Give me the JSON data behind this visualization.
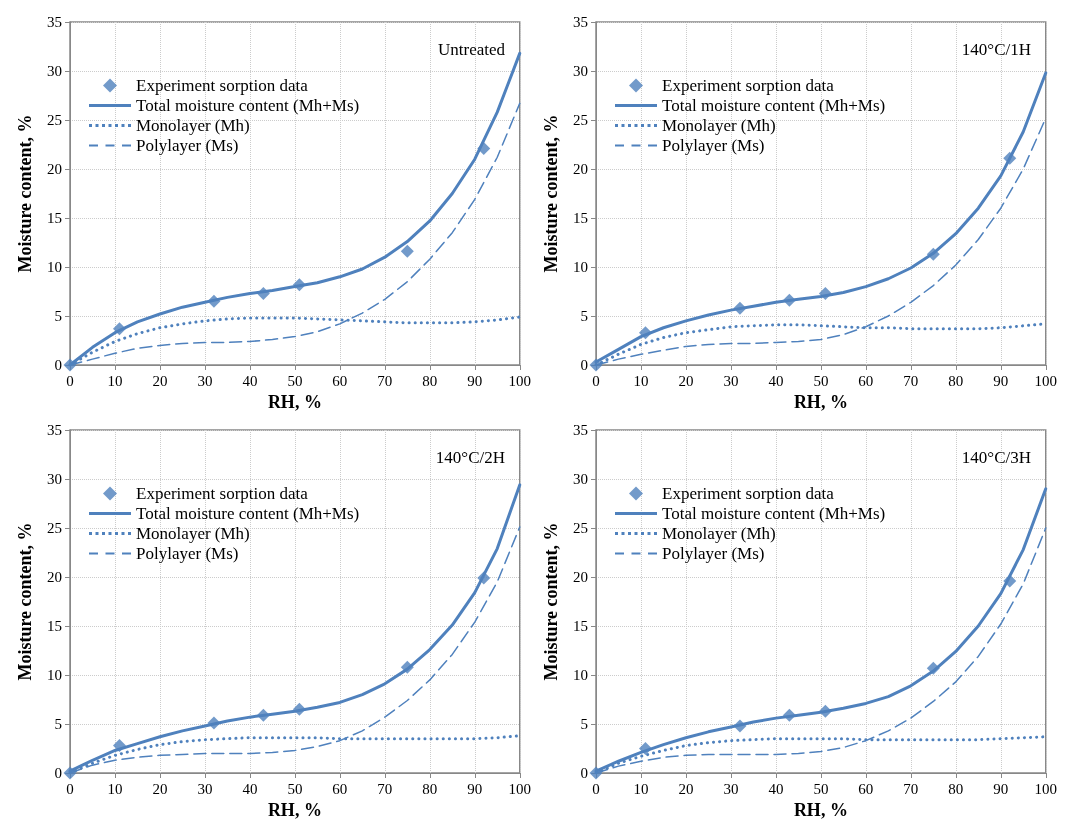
{
  "chart_data": [
    {
      "type": "line",
      "title": "Untreated",
      "xlabel": "RH, %",
      "ylabel": "Moisture content, %",
      "xlim": [
        0,
        100
      ],
      "xticks": [
        0,
        10,
        20,
        30,
        40,
        50,
        60,
        70,
        80,
        90,
        100
      ],
      "ylim": [
        0,
        35
      ],
      "yticks": [
        0,
        5,
        10,
        15,
        20,
        25,
        30,
        35
      ],
      "grid": true,
      "legend": "top left",
      "x": [
        0,
        5,
        10,
        15,
        20,
        25,
        30,
        35,
        40,
        45,
        50,
        55,
        60,
        65,
        70,
        75,
        80,
        85,
        90,
        95,
        100
      ],
      "series": [
        {
          "name": "Experiment sorption data",
          "type": "scatter",
          "marker": "diamond",
          "color": "#4f81bd",
          "x": [
            0,
            11,
            32,
            43,
            51,
            75,
            92
          ],
          "values": [
            0,
            3.7,
            6.5,
            7.3,
            8.2,
            11.6,
            22.1
          ]
        },
        {
          "name": "Total moisture content (Mh+Ms)",
          "type": "line",
          "marker": "none",
          "line_style": "solid",
          "color": "#4f81bd",
          "values": [
            0,
            1.8,
            3.3,
            4.4,
            5.2,
            5.9,
            6.4,
            6.9,
            7.3,
            7.6,
            8.0,
            8.4,
            9.0,
            9.8,
            11.0,
            12.6,
            14.7,
            17.5,
            21.0,
            25.8,
            31.8
          ]
        },
        {
          "name": "Monolayer (Mh)",
          "type": "line",
          "marker": "none",
          "line_style": "dotted",
          "color": "#4f81bd",
          "values": [
            0,
            1.3,
            2.4,
            3.2,
            3.8,
            4.2,
            4.5,
            4.7,
            4.8,
            4.8,
            4.8,
            4.7,
            4.6,
            4.5,
            4.4,
            4.3,
            4.3,
            4.3,
            4.4,
            4.6,
            4.9
          ]
        },
        {
          "name": "Polylayer (Ms)",
          "type": "line",
          "marker": "none",
          "line_style": "dashed",
          "color": "#4f81bd",
          "values": [
            0,
            0.6,
            1.2,
            1.7,
            2.0,
            2.2,
            2.3,
            2.3,
            2.4,
            2.6,
            2.9,
            3.4,
            4.2,
            5.3,
            6.7,
            8.5,
            10.8,
            13.5,
            16.9,
            21.2,
            26.7
          ]
        }
      ]
    },
    {
      "type": "line",
      "title": "140°C/1H",
      "xlabel": "RH, %",
      "ylabel": "Moisture content, %",
      "xlim": [
        0,
        100
      ],
      "xticks": [
        0,
        10,
        20,
        30,
        40,
        50,
        60,
        70,
        80,
        90,
        100
      ],
      "ylim": [
        0,
        35
      ],
      "yticks": [
        0,
        5,
        10,
        15,
        20,
        25,
        30,
        35
      ],
      "grid": true,
      "legend": "top left",
      "x": [
        0,
        5,
        10,
        15,
        20,
        25,
        30,
        35,
        40,
        45,
        50,
        55,
        60,
        65,
        70,
        75,
        80,
        85,
        90,
        95,
        100
      ],
      "series": [
        {
          "name": "Experiment sorption data",
          "type": "scatter",
          "marker": "diamond",
          "color": "#4f81bd",
          "x": [
            0,
            11,
            32,
            43,
            51,
            75,
            92
          ],
          "values": [
            0,
            3.3,
            5.8,
            6.6,
            7.3,
            11.3,
            21.1
          ]
        },
        {
          "name": "Total moisture content (Mh+Ms)",
          "type": "line",
          "marker": "none",
          "line_style": "solid",
          "color": "#4f81bd",
          "values": [
            0.3,
            1.6,
            2.9,
            3.8,
            4.5,
            5.1,
            5.6,
            6.0,
            6.4,
            6.7,
            7.0,
            7.4,
            8.0,
            8.8,
            9.9,
            11.4,
            13.4,
            16.0,
            19.3,
            23.8,
            29.8
          ]
        },
        {
          "name": "Monolayer (Mh)",
          "type": "line",
          "marker": "none",
          "line_style": "dotted",
          "color": "#4f81bd",
          "values": [
            0,
            1.1,
            2.1,
            2.8,
            3.3,
            3.6,
            3.9,
            4.0,
            4.1,
            4.1,
            4.0,
            3.9,
            3.8,
            3.8,
            3.7,
            3.7,
            3.7,
            3.7,
            3.8,
            4.0,
            4.2
          ]
        },
        {
          "name": "Polylayer (Ms)",
          "type": "line",
          "marker": "none",
          "line_style": "dashed",
          "color": "#4f81bd",
          "values": [
            0,
            0.6,
            1.1,
            1.5,
            1.9,
            2.1,
            2.2,
            2.2,
            2.3,
            2.4,
            2.6,
            3.1,
            3.9,
            5.0,
            6.4,
            8.1,
            10.2,
            12.8,
            16.0,
            20.0,
            25.2
          ]
        }
      ]
    },
    {
      "type": "line",
      "title": "140°C/2H",
      "xlabel": "RH, %",
      "ylabel": "Moisture content, %",
      "xlim": [
        0,
        100
      ],
      "xticks": [
        0,
        10,
        20,
        30,
        40,
        50,
        60,
        70,
        80,
        90,
        100
      ],
      "ylim": [
        0,
        35
      ],
      "yticks": [
        0,
        5,
        10,
        15,
        20,
        25,
        30,
        35
      ],
      "grid": true,
      "legend": "top left",
      "x": [
        0,
        5,
        10,
        15,
        20,
        25,
        30,
        35,
        40,
        45,
        50,
        55,
        60,
        65,
        70,
        75,
        80,
        85,
        90,
        95,
        100
      ],
      "series": [
        {
          "name": "Experiment sorption data",
          "type": "scatter",
          "marker": "diamond",
          "color": "#4f81bd",
          "x": [
            0,
            11,
            32,
            43,
            51,
            75,
            92
          ],
          "values": [
            0,
            2.8,
            5.1,
            5.9,
            6.5,
            10.8,
            19.9
          ]
        },
        {
          "name": "Total moisture content (Mh+Ms)",
          "type": "line",
          "marker": "none",
          "line_style": "solid",
          "color": "#4f81bd",
          "values": [
            0.2,
            1.3,
            2.3,
            3.0,
            3.7,
            4.3,
            4.8,
            5.3,
            5.7,
            6.0,
            6.3,
            6.7,
            7.2,
            8.0,
            9.1,
            10.6,
            12.6,
            15.1,
            18.4,
            22.9,
            29.4
          ]
        },
        {
          "name": "Monolayer (Mh)",
          "type": "line",
          "marker": "none",
          "line_style": "dotted",
          "color": "#4f81bd",
          "values": [
            0,
            1.0,
            1.8,
            2.4,
            2.9,
            3.2,
            3.4,
            3.5,
            3.6,
            3.6,
            3.6,
            3.6,
            3.5,
            3.5,
            3.5,
            3.5,
            3.5,
            3.5,
            3.5,
            3.6,
            3.8
          ]
        },
        {
          "name": "Polylayer (Ms)",
          "type": "line",
          "marker": "none",
          "line_style": "dashed",
          "color": "#4f81bd",
          "values": [
            0,
            0.8,
            1.3,
            1.6,
            1.8,
            1.9,
            2.0,
            2.0,
            2.0,
            2.1,
            2.3,
            2.7,
            3.3,
            4.3,
            5.7,
            7.4,
            9.5,
            12.1,
            15.4,
            19.5,
            25.1
          ]
        }
      ]
    },
    {
      "type": "line",
      "title": "140°C/3H",
      "xlabel": "RH, %",
      "ylabel": "Moisture content, %",
      "xlim": [
        0,
        100
      ],
      "xticks": [
        0,
        10,
        20,
        30,
        40,
        50,
        60,
        70,
        80,
        90,
        100
      ],
      "ylim": [
        0,
        35
      ],
      "yticks": [
        0,
        5,
        10,
        15,
        20,
        25,
        30,
        35
      ],
      "grid": true,
      "legend": "top left",
      "x": [
        0,
        5,
        10,
        15,
        20,
        25,
        30,
        35,
        40,
        45,
        50,
        55,
        60,
        65,
        70,
        75,
        80,
        85,
        90,
        95,
        100
      ],
      "series": [
        {
          "name": "Experiment sorption data",
          "type": "scatter",
          "marker": "diamond",
          "color": "#4f81bd",
          "x": [
            0,
            11,
            32,
            43,
            51,
            75,
            92
          ],
          "values": [
            0,
            2.5,
            4.8,
            5.9,
            6.3,
            10.7,
            19.6
          ]
        },
        {
          "name": "Total moisture content (Mh+Ms)",
          "type": "line",
          "marker": "none",
          "line_style": "solid",
          "color": "#4f81bd",
          "values": [
            0.2,
            1.2,
            2.1,
            2.9,
            3.6,
            4.2,
            4.7,
            5.2,
            5.6,
            5.9,
            6.2,
            6.6,
            7.1,
            7.8,
            8.9,
            10.4,
            12.4,
            15.0,
            18.3,
            22.8,
            29.0
          ]
        },
        {
          "name": "Monolayer (Mh)",
          "type": "line",
          "marker": "none",
          "line_style": "dotted",
          "color": "#4f81bd",
          "values": [
            0,
            1.0,
            1.7,
            2.3,
            2.8,
            3.1,
            3.3,
            3.4,
            3.5,
            3.5,
            3.5,
            3.5,
            3.4,
            3.4,
            3.4,
            3.4,
            3.4,
            3.4,
            3.5,
            3.6,
            3.7
          ]
        },
        {
          "name": "Polylayer (Ms)",
          "type": "line",
          "marker": "none",
          "line_style": "dashed",
          "color": "#4f81bd",
          "values": [
            0,
            0.7,
            1.2,
            1.6,
            1.8,
            1.9,
            1.9,
            1.9,
            1.9,
            2.0,
            2.2,
            2.6,
            3.3,
            4.3,
            5.6,
            7.3,
            9.3,
            11.9,
            15.2,
            19.3,
            25.0
          ]
        }
      ]
    }
  ]
}
